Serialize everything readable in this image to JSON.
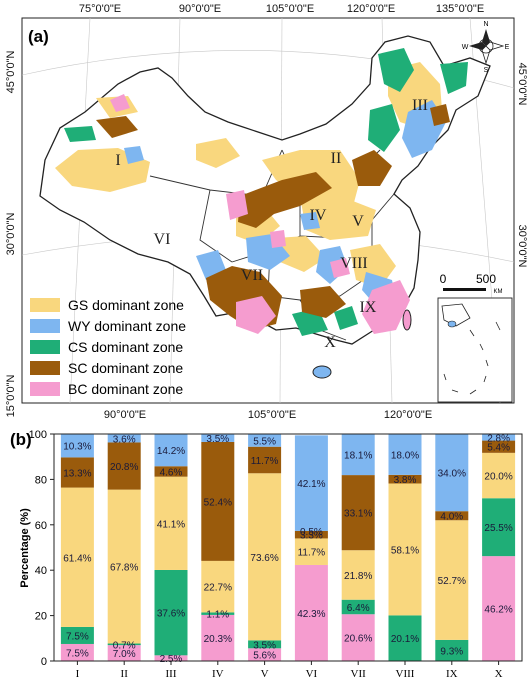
{
  "panel_a": {
    "label": "(a)",
    "top_longitudes": [
      "75°0'0\"E",
      "90°0'0\"E",
      "105°0'0\"E",
      "120°0'0\"E",
      "135°0'0\"E"
    ],
    "bottom_longitudes": [
      "90°0'0\"E",
      "105°0'0\"E",
      "120°0'0\"E"
    ],
    "left_latitudes": [
      "45°0'0\"N",
      "30°0'0\"N",
      "15°0'0\"N"
    ],
    "right_latitudes": [
      "45°0'0\"N",
      "30°0'0\"N"
    ],
    "zone_labels": [
      "I",
      "II",
      "III",
      "IV",
      "V",
      "VI",
      "VII",
      "VIII",
      "IX",
      "X"
    ],
    "compass": {
      "n": "N",
      "s": "S",
      "e": "E",
      "w": "W"
    },
    "scale_bar": {
      "start": "0",
      "end": "500",
      "unit": "KM"
    },
    "legend": [
      {
        "label": "GS dominant zone",
        "color": "#f9d77e"
      },
      {
        "label": "WY dominant zone",
        "color": "#7eb6f0"
      },
      {
        "label": "CS dominant zone",
        "color": "#1fae77"
      },
      {
        "label": "SC dominant zone",
        "color": "#9a5b0c"
      },
      {
        "label": "BC dominant zone",
        "color": "#f59ccf"
      }
    ]
  },
  "panel_b": {
    "label": "(b)"
  },
  "chart_data": {
    "type": "bar",
    "stacked": true,
    "categories": [
      "I",
      "II",
      "III",
      "IV",
      "V",
      "VI",
      "VII",
      "VIII",
      "IX",
      "X"
    ],
    "ylabel": "Percentage (%)",
    "ylim": [
      0,
      100
    ],
    "yticks": [
      "0",
      "20",
      "40",
      "60",
      "80",
      "100"
    ],
    "series": [
      {
        "key": "BC",
        "color": "#f59ccf",
        "values": [
          7.5,
          7.0,
          2.5,
          20.3,
          5.6,
          42.3,
          20.6,
          0,
          0,
          46.2
        ],
        "labels": [
          "7.5%",
          "7.0%",
          "2.5%",
          "20.3%",
          "5.6%",
          "42.3%",
          "20.6%",
          "",
          "",
          "46.2%"
        ]
      },
      {
        "key": "CS",
        "color": "#1fae77",
        "values": [
          7.5,
          0.7,
          37.6,
          1.1,
          3.5,
          0,
          6.4,
          20.1,
          9.3,
          25.5
        ],
        "labels": [
          "7.5%",
          "0.7%",
          "37.6%",
          "1.1%",
          "3.5%",
          "",
          "6.4%",
          "20.1%",
          "9.3%",
          "25.5%"
        ]
      },
      {
        "key": "GS",
        "color": "#f9d77e",
        "values": [
          61.4,
          67.8,
          41.1,
          22.7,
          73.6,
          11.7,
          21.8,
          58.1,
          52.7,
          20.0
        ],
        "labels": [
          "61.4%",
          "67.8%",
          "41.1%",
          "22.7%",
          "73.6%",
          "11.7%",
          "21.8%",
          "58.1%",
          "52.7%",
          "20.0%"
        ]
      },
      {
        "key": "SC",
        "color": "#9a5b0c",
        "values": [
          13.3,
          20.8,
          4.6,
          52.4,
          11.7,
          3.3,
          33.1,
          3.8,
          4.0,
          5.4
        ],
        "labels": [
          "13.3%",
          "20.8%",
          "4.6%",
          "52.4%",
          "11.7%",
          "3.3%",
          "33.1%",
          "3.8%",
          "4.0%",
          "5.4%"
        ]
      },
      {
        "key": "WY",
        "color": "#7eb6f0",
        "values": [
          10.3,
          3.6,
          14.2,
          3.5,
          5.5,
          42.1,
          18.1,
          18.0,
          34.0,
          2.8
        ],
        "labels": [
          "10.3%",
          "3.6%",
          "14.2%",
          "3.5%",
          "5.5%",
          "42.1%",
          "18.1%",
          "18.0%",
          "34.0%",
          "2.8%"
        ]
      }
    ],
    "extra_labels": [
      {
        "category": "VI",
        "text": "0.5%"
      }
    ]
  }
}
